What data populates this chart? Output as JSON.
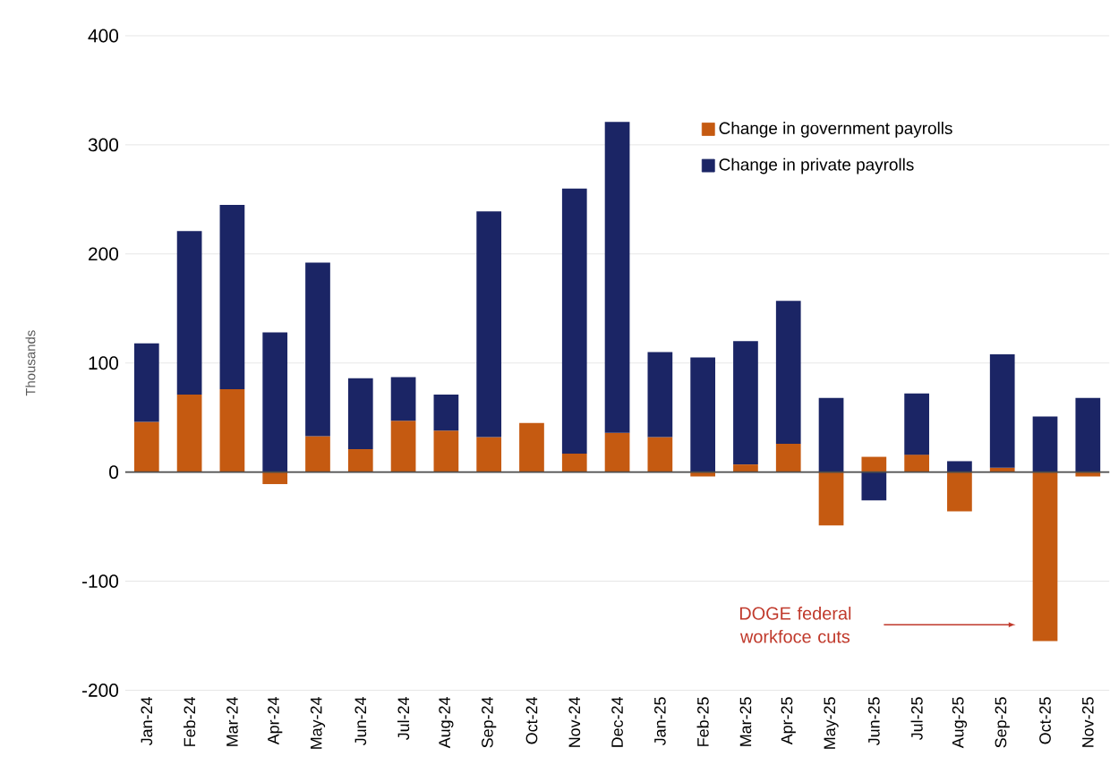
{
  "chart_data": {
    "type": "bar",
    "stacked": true,
    "ylabel": "Thousands",
    "categories": [
      "Jan-24",
      "Feb-24",
      "Mar-24",
      "Apr-24",
      "May-24",
      "Jun-24",
      "Jul-24",
      "Aug-24",
      "Sep-24",
      "Oct-24",
      "Nov-24",
      "Dec-24",
      "Jan-25",
      "Feb-25",
      "Mar-25",
      "Apr-25",
      "May-25",
      "Jun-25",
      "Jul-25",
      "Aug-25",
      "Sep-25",
      "Oct-25",
      "Nov-25"
    ],
    "series": [
      {
        "name": "Change in government payrolls",
        "color": "#c55a11",
        "values": [
          46,
          71,
          76,
          -11,
          33,
          21,
          47,
          38,
          32,
          45,
          17,
          36,
          32,
          -4,
          7,
          26,
          -49,
          14,
          16,
          -36,
          4,
          -155,
          -4
        ]
      },
      {
        "name": "Change in private payrolls",
        "color": "#1b2565",
        "values": [
          72,
          150,
          169,
          128,
          159,
          65,
          40,
          33,
          207,
          0,
          243,
          285,
          78,
          105,
          113,
          131,
          68,
          -26,
          56,
          10,
          104,
          51,
          68
        ]
      }
    ],
    "ylim": [
      -200,
      400
    ],
    "yticks": [
      -200,
      -100,
      0,
      100,
      200,
      300,
      400
    ],
    "grid": "y",
    "legend": "top right",
    "annotations": [
      "DOGE federal workfoce cuts"
    ]
  }
}
